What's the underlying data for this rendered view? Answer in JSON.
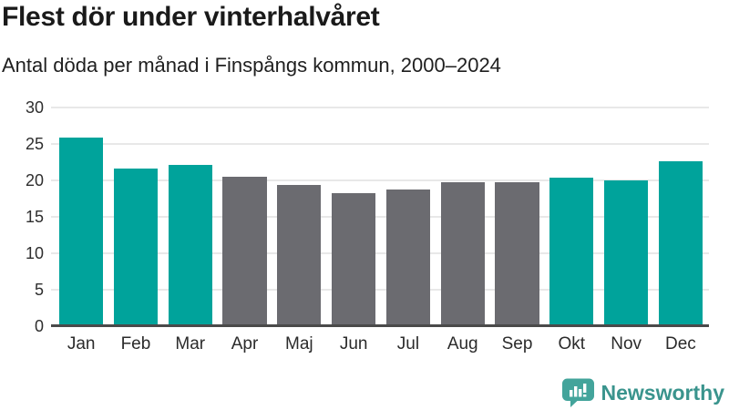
{
  "chart_data": {
    "type": "bar",
    "title": "Flest dör under vinterhalvåret",
    "subtitle": "Antal döda per månad i Finspångs kommun, 2000–2024",
    "categories": [
      "Jan",
      "Feb",
      "Mar",
      "Apr",
      "Maj",
      "Jun",
      "Jul",
      "Aug",
      "Sep",
      "Okt",
      "Nov",
      "Dec"
    ],
    "values": [
      25.9,
      21.6,
      22.1,
      20.5,
      19.4,
      18.2,
      18.8,
      19.8,
      19.8,
      20.4,
      20.0,
      22.6
    ],
    "bar_colors": [
      "#00a39b",
      "#00a39b",
      "#00a39b",
      "#6b6b70",
      "#6b6b70",
      "#6b6b70",
      "#6b6b70",
      "#6b6b70",
      "#6b6b70",
      "#00a39b",
      "#00a39b",
      "#00a39b"
    ],
    "highlight_color": "#00a39b",
    "base_color": "#6b6b70",
    "xlabel": "",
    "ylabel": "",
    "ylim": [
      0,
      30
    ],
    "yticks": [
      0,
      5,
      10,
      15,
      20,
      25,
      30
    ],
    "grid": true,
    "legend": "none"
  },
  "footer": {
    "brand": "Newsworthy",
    "logo_icon": "newsworthy-speech-bubble-bar-chart-icon",
    "brand_color": "#3a948d",
    "icon_color": "#43a49b"
  },
  "colors": {
    "title": "#1a1a1a",
    "subtitle": "#1f1f1f",
    "axis_labels": "#2e2e2e",
    "gridline": "#e8e8e8",
    "axis_line": "#4a4a4a",
    "background": "#ffffff"
  }
}
